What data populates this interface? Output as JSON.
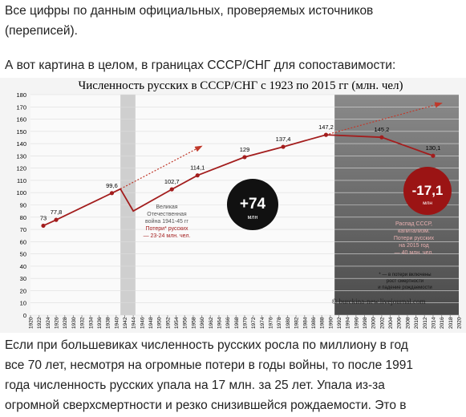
{
  "intro": [
    "Все цифры по данным официальных, проверяемых источников",
    "(переписей)."
  ],
  "lead": "А вот картина в целом, в границах СССР/СНГ для сопоставимости:",
  "chart_data": {
    "type": "line",
    "title": "Численность русских в СССР/СНГ с 1923 по 2015 гг (млн. чел)",
    "x": [
      1923,
      1926,
      1939,
      1941,
      1944,
      1953,
      1959,
      1970,
      1979,
      1989,
      2002,
      2014
    ],
    "values": [
      73,
      77.8,
      99.6,
      103,
      85,
      102.7,
      114.1,
      129,
      137.4,
      147.2,
      145.2,
      130.1
    ],
    "value_labels": [
      "73",
      "77,8",
      "99,6",
      null,
      null,
      "102,7",
      "114,1",
      "129",
      "137,4",
      "147,2",
      "145,2",
      "130,1"
    ],
    "color": "#a31d1d",
    "ylim": [
      0,
      180
    ],
    "yticks": [
      0,
      10,
      20,
      30,
      40,
      50,
      60,
      70,
      80,
      90,
      100,
      110,
      120,
      130,
      140,
      150,
      160,
      170,
      180
    ],
    "xlim": [
      1920,
      2020
    ],
    "xticks": [
      1920,
      1922,
      1924,
      1926,
      1928,
      1930,
      1932,
      1934,
      1936,
      1938,
      1940,
      1942,
      1944,
      1946,
      1948,
      1950,
      1952,
      1954,
      1956,
      1958,
      1960,
      1962,
      1964,
      1966,
      1968,
      1970,
      1972,
      1974,
      1976,
      1978,
      1980,
      1982,
      1984,
      1986,
      1988,
      1990,
      1992,
      1994,
      1996,
      1998,
      2000,
      2002,
      2004,
      2006,
      2008,
      2010,
      2012,
      2014,
      2016,
      2018,
      2020
    ],
    "grid": true,
    "annotations": {
      "growth": "+74",
      "growth_unit": "млн",
      "loss": "-17,1",
      "loss_unit": "млн",
      "war": [
        "Великая",
        "Отечественная",
        "война 1941-45 гг",
        "Потери* русских",
        "— 23-24 млн. чел."
      ],
      "collapse": [
        "Распад СССР,",
        "капитализм.",
        "Потери русских",
        "на 2015 год",
        "— 40 млн. чел."
      ],
      "footnote": [
        "* — в потери включены",
        "рост смертности",
        "и падение рождаемости"
      ],
      "credit": "© burckina-new.livejournal.com"
    }
  },
  "body": [
    "Если при большевиках численность русских росла по миллиону в год",
    "все 70 лет, несмотря на огромные потери в годы войны, то после 1991",
    "года численность русских упала на 17 млн. за 25 лет. Упала из-за",
    "огромной сверхсмертности и резко снизившейся рождаемости. Это в"
  ]
}
